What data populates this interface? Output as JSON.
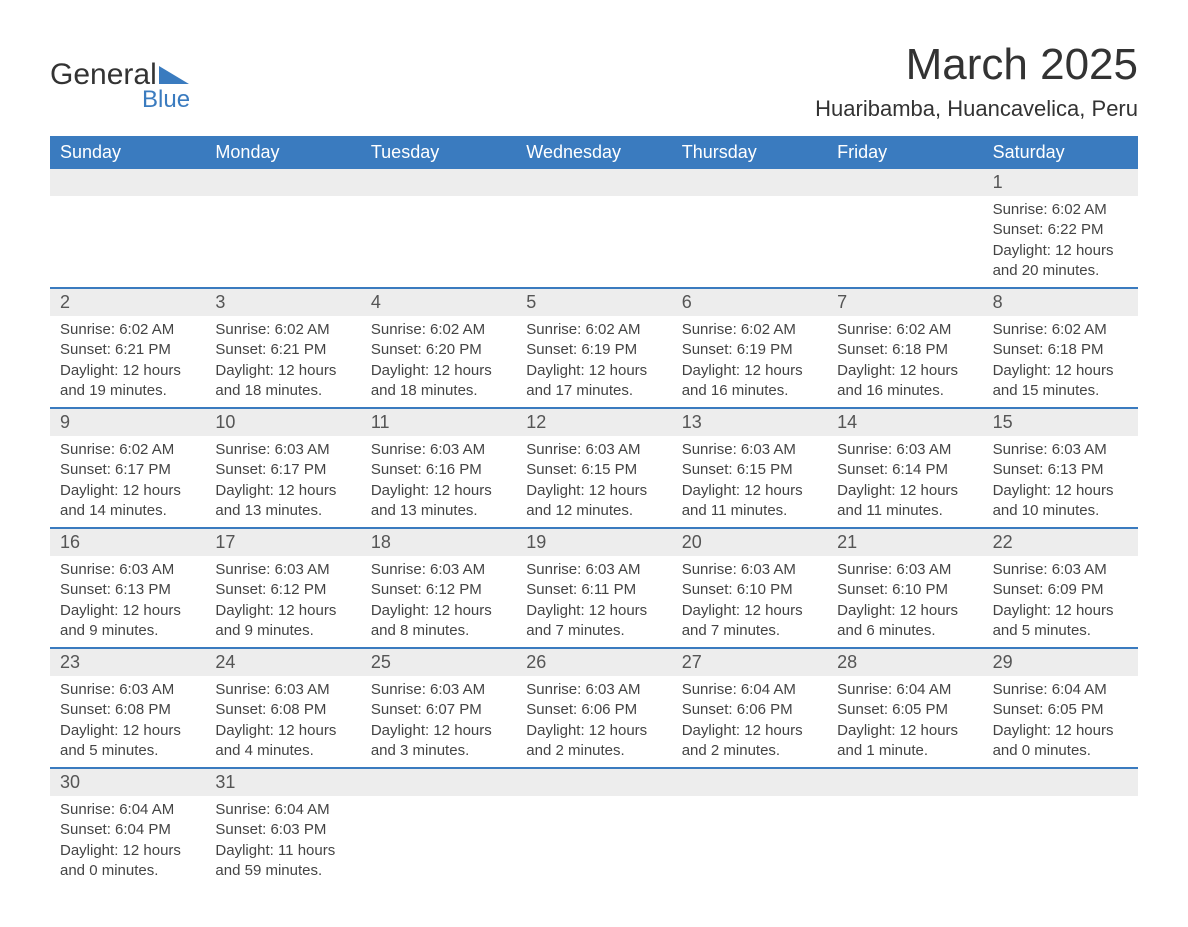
{
  "brand": {
    "name_top": "General",
    "name_bottom": "Blue"
  },
  "title": "March 2025",
  "subtitle": "Huaribamba, Huancavelica, Peru",
  "colors": {
    "header_bg": "#3a7bbf",
    "header_fg": "#ffffff",
    "daynum_bg": "#ededed",
    "text": "#333333",
    "row_sep": "#3a7bbf"
  },
  "day_labels": [
    "Sunday",
    "Monday",
    "Tuesday",
    "Wednesday",
    "Thursday",
    "Friday",
    "Saturday"
  ],
  "weeks": [
    [
      null,
      null,
      null,
      null,
      null,
      null,
      {
        "n": "1",
        "sunrise": "6:02 AM",
        "sunset": "6:22 PM",
        "daylight_h": "12",
        "daylight_m": "20"
      }
    ],
    [
      {
        "n": "2",
        "sunrise": "6:02 AM",
        "sunset": "6:21 PM",
        "daylight_h": "12",
        "daylight_m": "19"
      },
      {
        "n": "3",
        "sunrise": "6:02 AM",
        "sunset": "6:21 PM",
        "daylight_h": "12",
        "daylight_m": "18"
      },
      {
        "n": "4",
        "sunrise": "6:02 AM",
        "sunset": "6:20 PM",
        "daylight_h": "12",
        "daylight_m": "18"
      },
      {
        "n": "5",
        "sunrise": "6:02 AM",
        "sunset": "6:19 PM",
        "daylight_h": "12",
        "daylight_m": "17"
      },
      {
        "n": "6",
        "sunrise": "6:02 AM",
        "sunset": "6:19 PM",
        "daylight_h": "12",
        "daylight_m": "16"
      },
      {
        "n": "7",
        "sunrise": "6:02 AM",
        "sunset": "6:18 PM",
        "daylight_h": "12",
        "daylight_m": "16"
      },
      {
        "n": "8",
        "sunrise": "6:02 AM",
        "sunset": "6:18 PM",
        "daylight_h": "12",
        "daylight_m": "15"
      }
    ],
    [
      {
        "n": "9",
        "sunrise": "6:02 AM",
        "sunset": "6:17 PM",
        "daylight_h": "12",
        "daylight_m": "14"
      },
      {
        "n": "10",
        "sunrise": "6:03 AM",
        "sunset": "6:17 PM",
        "daylight_h": "12",
        "daylight_m": "13"
      },
      {
        "n": "11",
        "sunrise": "6:03 AM",
        "sunset": "6:16 PM",
        "daylight_h": "12",
        "daylight_m": "13"
      },
      {
        "n": "12",
        "sunrise": "6:03 AM",
        "sunset": "6:15 PM",
        "daylight_h": "12",
        "daylight_m": "12"
      },
      {
        "n": "13",
        "sunrise": "6:03 AM",
        "sunset": "6:15 PM",
        "daylight_h": "12",
        "daylight_m": "11"
      },
      {
        "n": "14",
        "sunrise": "6:03 AM",
        "sunset": "6:14 PM",
        "daylight_h": "12",
        "daylight_m": "11"
      },
      {
        "n": "15",
        "sunrise": "6:03 AM",
        "sunset": "6:13 PM",
        "daylight_h": "12",
        "daylight_m": "10"
      }
    ],
    [
      {
        "n": "16",
        "sunrise": "6:03 AM",
        "sunset": "6:13 PM",
        "daylight_h": "12",
        "daylight_m": "9"
      },
      {
        "n": "17",
        "sunrise": "6:03 AM",
        "sunset": "6:12 PM",
        "daylight_h": "12",
        "daylight_m": "9"
      },
      {
        "n": "18",
        "sunrise": "6:03 AM",
        "sunset": "6:12 PM",
        "daylight_h": "12",
        "daylight_m": "8"
      },
      {
        "n": "19",
        "sunrise": "6:03 AM",
        "sunset": "6:11 PM",
        "daylight_h": "12",
        "daylight_m": "7"
      },
      {
        "n": "20",
        "sunrise": "6:03 AM",
        "sunset": "6:10 PM",
        "daylight_h": "12",
        "daylight_m": "7"
      },
      {
        "n": "21",
        "sunrise": "6:03 AM",
        "sunset": "6:10 PM",
        "daylight_h": "12",
        "daylight_m": "6"
      },
      {
        "n": "22",
        "sunrise": "6:03 AM",
        "sunset": "6:09 PM",
        "daylight_h": "12",
        "daylight_m": "5"
      }
    ],
    [
      {
        "n": "23",
        "sunrise": "6:03 AM",
        "sunset": "6:08 PM",
        "daylight_h": "12",
        "daylight_m": "5"
      },
      {
        "n": "24",
        "sunrise": "6:03 AM",
        "sunset": "6:08 PM",
        "daylight_h": "12",
        "daylight_m": "4"
      },
      {
        "n": "25",
        "sunrise": "6:03 AM",
        "sunset": "6:07 PM",
        "daylight_h": "12",
        "daylight_m": "3"
      },
      {
        "n": "26",
        "sunrise": "6:03 AM",
        "sunset": "6:06 PM",
        "daylight_h": "12",
        "daylight_m": "2"
      },
      {
        "n": "27",
        "sunrise": "6:04 AM",
        "sunset": "6:06 PM",
        "daylight_h": "12",
        "daylight_m": "2"
      },
      {
        "n": "28",
        "sunrise": "6:04 AM",
        "sunset": "6:05 PM",
        "daylight_h": "12",
        "daylight_m": "1",
        "min_unit": "minute"
      },
      {
        "n": "29",
        "sunrise": "6:04 AM",
        "sunset": "6:05 PM",
        "daylight_h": "12",
        "daylight_m": "0"
      }
    ],
    [
      {
        "n": "30",
        "sunrise": "6:04 AM",
        "sunset": "6:04 PM",
        "daylight_h": "12",
        "daylight_m": "0"
      },
      {
        "n": "31",
        "sunrise": "6:04 AM",
        "sunset": "6:03 PM",
        "daylight_h": "11",
        "daylight_m": "59"
      },
      null,
      null,
      null,
      null,
      null
    ]
  ],
  "labels": {
    "sunrise": "Sunrise:",
    "sunset": "Sunset:",
    "daylight": "Daylight:",
    "hours": "hours",
    "and": "and",
    "minutes": "minutes",
    "minute": "minute"
  }
}
